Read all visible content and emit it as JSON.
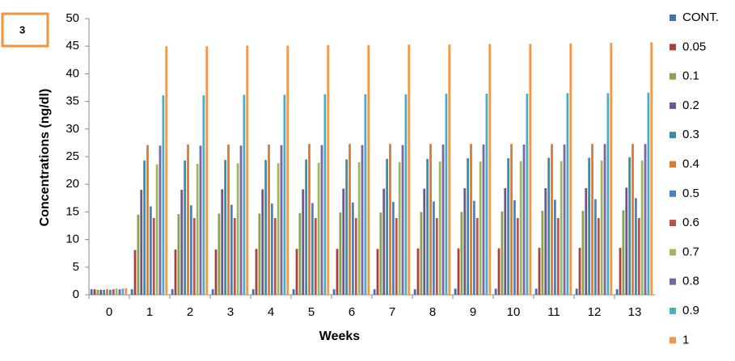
{
  "chart_data": {
    "type": "bar",
    "annotation": "3",
    "x_label": "Weeks",
    "y_label": "Concentrations (ng/dl)",
    "categories": [
      "0",
      "1",
      "2",
      "3",
      "4",
      "5",
      "6",
      "7",
      "8",
      "9",
      "10",
      "11",
      "12",
      "13"
    ],
    "ylim": [
      0,
      50
    ],
    "yticks": [
      0,
      5,
      10,
      15,
      20,
      25,
      30,
      35,
      40,
      45,
      50
    ],
    "grid": false,
    "legend": "right",
    "series": [
      {
        "name": "CONT.",
        "color": "#4472a8",
        "values": [
          1.0,
          1.0,
          1.0,
          1.0,
          1.0,
          1.0,
          1.0,
          1.0,
          1.0,
          1.1,
          1.1,
          1.1,
          1.1,
          1.0
        ]
      },
      {
        "name": "0.05",
        "color": "#a9423f",
        "values": [
          1.0,
          8.1,
          8.2,
          8.2,
          8.3,
          8.3,
          8.3,
          8.3,
          8.4,
          8.4,
          8.4,
          8.5,
          8.5,
          8.5
        ]
      },
      {
        "name": "0.1",
        "color": "#86a44a",
        "values": [
          0.9,
          14.5,
          14.6,
          14.7,
          14.7,
          14.8,
          14.9,
          14.9,
          15.0,
          15.0,
          15.1,
          15.2,
          15.2,
          15.3
        ]
      },
      {
        "name": "0.2",
        "color": "#6e5590",
        "values": [
          0.9,
          19.0,
          19.0,
          19.1,
          19.1,
          19.1,
          19.2,
          19.2,
          19.2,
          19.3,
          19.3,
          19.3,
          19.3,
          19.4
        ]
      },
      {
        "name": "0.3",
        "color": "#3c8da3",
        "values": [
          0.9,
          24.3,
          24.3,
          24.4,
          24.4,
          24.5,
          24.5,
          24.6,
          24.6,
          24.7,
          24.7,
          24.8,
          24.8,
          24.9
        ]
      },
      {
        "name": "0.4",
        "color": "#d97c32",
        "values": [
          1.0,
          27.1,
          27.2,
          27.2,
          27.2,
          27.3,
          27.3,
          27.3,
          27.3,
          27.3,
          27.3,
          27.3,
          27.3,
          27.3
        ]
      },
      {
        "name": "0.5",
        "color": "#4f81bd",
        "values": [
          0.9,
          16.0,
          16.2,
          16.3,
          16.5,
          16.6,
          16.7,
          16.8,
          16.9,
          17.0,
          17.1,
          17.2,
          17.3,
          17.5
        ]
      },
      {
        "name": "0.6",
        "color": "#c0504d",
        "values": [
          1.0,
          13.9,
          13.9,
          13.9,
          13.9,
          13.9,
          13.9,
          13.9,
          13.9,
          13.9,
          13.9,
          13.9,
          13.9,
          13.9
        ]
      },
      {
        "name": "0.7",
        "color": "#9bbb59",
        "values": [
          1.1,
          23.6,
          23.7,
          23.8,
          23.8,
          23.9,
          24.0,
          24.0,
          24.1,
          24.1,
          24.2,
          24.2,
          24.3,
          24.3
        ]
      },
      {
        "name": "0.8",
        "color": "#8064a2",
        "values": [
          1.0,
          27.0,
          27.0,
          27.0,
          27.1,
          27.1,
          27.1,
          27.1,
          27.2,
          27.2,
          27.2,
          27.2,
          27.3,
          27.3
        ]
      },
      {
        "name": "0.9",
        "color": "#4bacc6",
        "values": [
          1.1,
          36.1,
          36.1,
          36.2,
          36.2,
          36.3,
          36.3,
          36.3,
          36.4,
          36.4,
          36.4,
          36.5,
          36.5,
          36.6
        ]
      },
      {
        "name": "1",
        "color": "#f79646",
        "values": [
          1.2,
          45.0,
          45.0,
          45.1,
          45.1,
          45.2,
          45.2,
          45.3,
          45.3,
          45.4,
          45.4,
          45.5,
          45.6,
          45.7
        ]
      }
    ]
  }
}
